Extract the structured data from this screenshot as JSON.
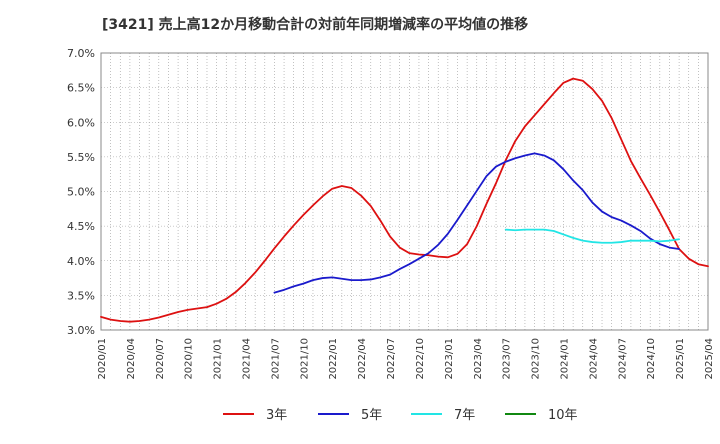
{
  "chart_data": {
    "type": "line",
    "title": "[3421]  売上高12か月移動合計の対前年同期増減率の平均値の推移",
    "xlabel": "",
    "ylabel": "",
    "x_ticks": [
      "2020/01",
      "2020/04",
      "2020/07",
      "2020/10",
      "2021/01",
      "2021/04",
      "2021/07",
      "2021/10",
      "2022/01",
      "2022/04",
      "2022/07",
      "2022/10",
      "2023/01",
      "2023/04",
      "2023/07",
      "2023/10",
      "2024/01",
      "2024/04",
      "2024/07",
      "2024/10",
      "2025/01",
      "2025/04"
    ],
    "x_range": [
      "2020/01",
      "2025/04"
    ],
    "ylim": [
      3.0,
      7.0
    ],
    "y_ticks": [
      "3.0%",
      "3.5%",
      "4.0%",
      "4.5%",
      "5.0%",
      "5.5%",
      "6.0%",
      "6.5%",
      "7.0%"
    ],
    "grid": true,
    "legend_position": "bottom",
    "series": [
      {
        "name": "3年",
        "color": "#dd1111",
        "x_start": "2020/01",
        "values": [
          3.19,
          3.15,
          3.13,
          3.12,
          3.13,
          3.15,
          3.18,
          3.22,
          3.26,
          3.29,
          3.31,
          3.33,
          3.38,
          3.45,
          3.55,
          3.68,
          3.83,
          4.0,
          4.18,
          4.35,
          4.51,
          4.66,
          4.8,
          4.93,
          5.04,
          5.08,
          5.05,
          4.94,
          4.79,
          4.58,
          4.35,
          4.19,
          4.11,
          4.09,
          4.08,
          4.06,
          4.05,
          4.1,
          4.24,
          4.5,
          4.82,
          5.12,
          5.45,
          5.73,
          5.94,
          6.1,
          6.26,
          6.42,
          6.57,
          6.63,
          6.6,
          6.48,
          6.31,
          6.06,
          5.75,
          5.44,
          5.19,
          4.95,
          4.7,
          4.44,
          4.17,
          4.03,
          3.95,
          3.92
        ]
      },
      {
        "name": "5年",
        "color": "#1a1acc",
        "x_start": "2021/07",
        "values": [
          3.54,
          3.58,
          3.63,
          3.67,
          3.72,
          3.75,
          3.76,
          3.74,
          3.72,
          3.72,
          3.73,
          3.76,
          3.8,
          3.88,
          3.95,
          4.03,
          4.11,
          4.23,
          4.39,
          4.59,
          4.8,
          5.01,
          5.22,
          5.36,
          5.43,
          5.48,
          5.52,
          5.55,
          5.52,
          5.45,
          5.32,
          5.16,
          5.02,
          4.84,
          4.71,
          4.63,
          4.58,
          4.51,
          4.43,
          4.32,
          4.24,
          4.19,
          4.17
        ]
      },
      {
        "name": "7年",
        "color": "#22e5e5",
        "x_start": "2023/07",
        "values": [
          4.45,
          4.44,
          4.45,
          4.45,
          4.45,
          4.43,
          4.38,
          4.33,
          4.29,
          4.27,
          4.26,
          4.26,
          4.27,
          4.29,
          4.29,
          4.29,
          4.28,
          4.29,
          4.31
        ]
      },
      {
        "name": "10年",
        "color": "#118811",
        "x_start": "",
        "values": []
      }
    ]
  }
}
